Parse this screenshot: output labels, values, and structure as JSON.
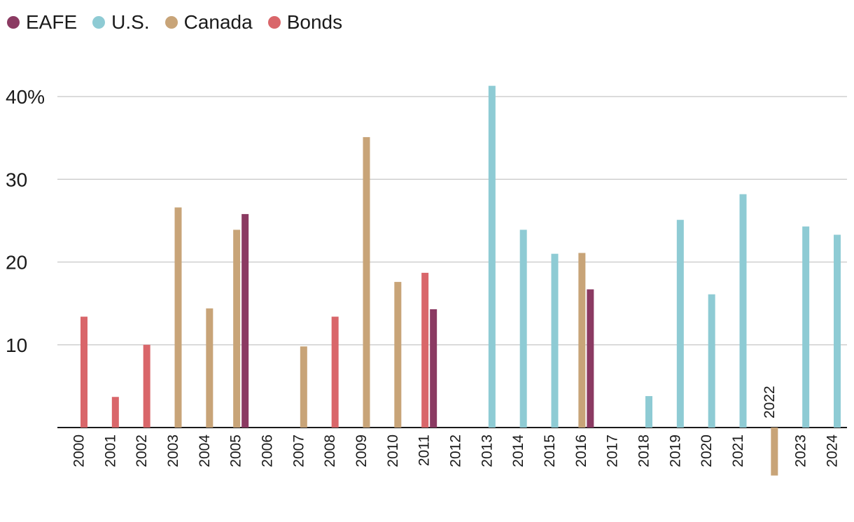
{
  "chart_data": {
    "type": "bar",
    "title": "",
    "xlabel": "",
    "ylabel": "",
    "ylim": [
      0,
      40
    ],
    "y_ticks": [
      10,
      20,
      30,
      40
    ],
    "y_tick_labels": [
      "10",
      "20",
      "30",
      "40%"
    ],
    "grid": true,
    "legend_placement": "top-left",
    "series": [
      {
        "name": "EAFE",
        "color": "#8b3a62"
      },
      {
        "name": "U.S.",
        "color": "#8ecbd4"
      },
      {
        "name": "Canada",
        "color": "#c8a478"
      },
      {
        "name": "Bonds",
        "color": "#d9666a"
      }
    ],
    "years": [
      {
        "year": "2000",
        "bars": [
          {
            "series": "Bonds",
            "value": 13.4
          }
        ]
      },
      {
        "year": "2001",
        "bars": [
          {
            "series": "Bonds",
            "value": 3.7
          }
        ]
      },
      {
        "year": "2002",
        "bars": [
          {
            "series": "Bonds",
            "value": 10.0
          }
        ]
      },
      {
        "year": "2003",
        "bars": [
          {
            "series": "Canada",
            "value": 26.6
          }
        ]
      },
      {
        "year": "2004",
        "bars": [
          {
            "series": "Canada",
            "value": 14.4
          }
        ]
      },
      {
        "year": "2005",
        "bars": [
          {
            "series": "Canada",
            "value": 23.9
          },
          {
            "series": "EAFE",
            "value": 25.8
          }
        ]
      },
      {
        "year": "2006",
        "bars": []
      },
      {
        "year": "2007",
        "bars": [
          {
            "series": "Canada",
            "value": 9.8
          }
        ]
      },
      {
        "year": "2008",
        "bars": [
          {
            "series": "Bonds",
            "value": 13.4
          }
        ]
      },
      {
        "year": "2009",
        "bars": [
          {
            "series": "Canada",
            "value": 35.1
          }
        ]
      },
      {
        "year": "2010",
        "bars": [
          {
            "series": "Canada",
            "value": 17.6
          }
        ]
      },
      {
        "year": "2011",
        "bars": [
          {
            "series": "Bonds",
            "value": 18.7
          },
          {
            "series": "EAFE",
            "value": 14.3
          }
        ]
      },
      {
        "year": "2012",
        "bars": []
      },
      {
        "year": "2013",
        "bars": [
          {
            "series": "U.S.",
            "value": 41.3
          }
        ]
      },
      {
        "year": "2014",
        "bars": [
          {
            "series": "U.S.",
            "value": 23.9
          }
        ]
      },
      {
        "year": "2015",
        "bars": [
          {
            "series": "U.S.",
            "value": 21.0
          }
        ]
      },
      {
        "year": "2016",
        "bars": [
          {
            "series": "Canada",
            "value": 21.1
          },
          {
            "series": "EAFE",
            "value": 16.7
          }
        ]
      },
      {
        "year": "2017",
        "bars": []
      },
      {
        "year": "2018",
        "bars": [
          {
            "series": "U.S.",
            "value": 3.8
          }
        ]
      },
      {
        "year": "2019",
        "bars": [
          {
            "series": "U.S.",
            "value": 25.1
          }
        ]
      },
      {
        "year": "2020",
        "bars": [
          {
            "series": "U.S.",
            "value": 16.1
          }
        ]
      },
      {
        "year": "2021",
        "bars": [
          {
            "series": "U.S.",
            "value": 28.2
          }
        ]
      },
      {
        "year": "2022",
        "label_above_axis": true,
        "bars": [
          {
            "series": "Canada",
            "value": -5.8
          }
        ]
      },
      {
        "year": "2023",
        "bars": [
          {
            "series": "U.S.",
            "value": 24.3
          }
        ]
      },
      {
        "year": "2024",
        "bars": [
          {
            "series": "U.S.",
            "value": 23.3
          }
        ]
      }
    ]
  }
}
